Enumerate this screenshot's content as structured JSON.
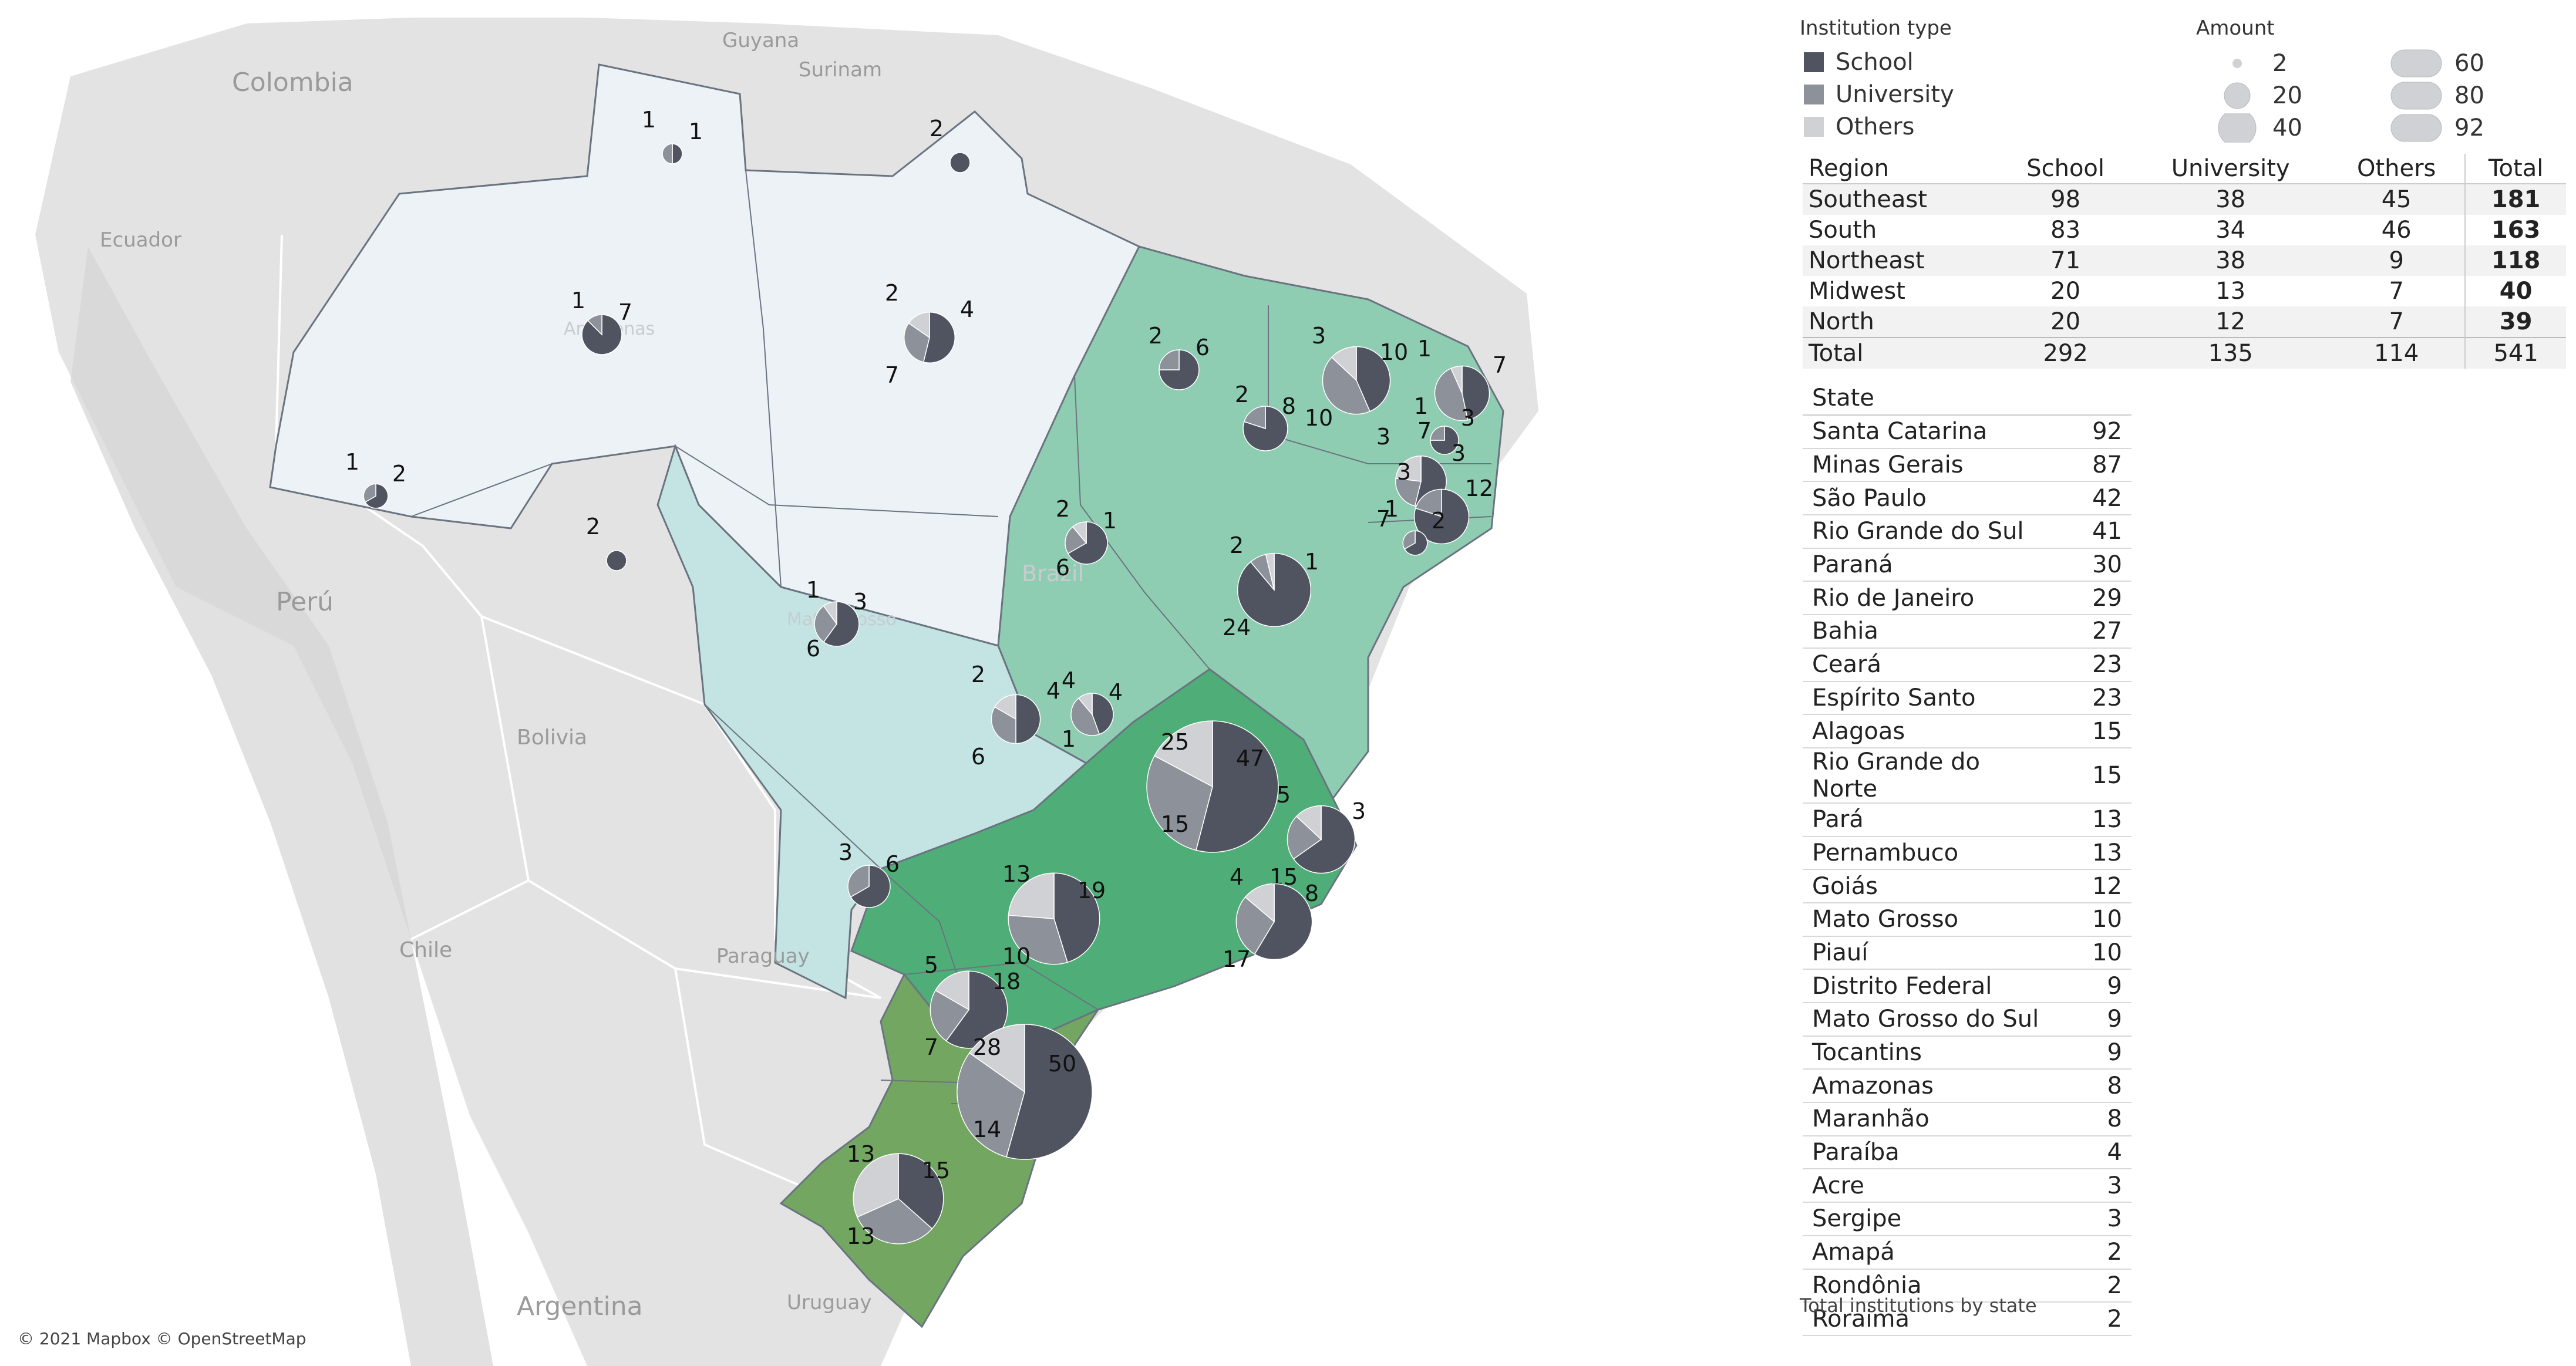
{
  "map": {
    "attribution": "© 2021 Mapbox © OpenStreetMap",
    "country_labels": [
      "Guyana",
      "Surinam",
      "Colombia",
      "Ecuador",
      "Perú",
      "Bolivia",
      "Paraguay",
      "Chile",
      "Argentina",
      "Uruguay",
      "Brazil"
    ],
    "state_labels": [
      "Amazonas",
      "Mato Grosso"
    ],
    "colors": {
      "north": "#edf2f7",
      "midwest": "#c3e4e3",
      "northeast": "#8fcdb2",
      "southeast": "#4fae77",
      "south": "#72a661",
      "school": "#4f5460",
      "university": "#8d9199",
      "others": "#cfd1d4"
    },
    "states": [
      {
        "name": "Roraima",
        "values": [
          1,
          1
        ],
        "labels": [
          "1",
          "1"
        ]
      },
      {
        "name": "Amapá",
        "values": [
          2
        ],
        "labels": [
          "2"
        ]
      },
      {
        "name": "Amazonas",
        "values": [
          1,
          7
        ],
        "labels": [
          "1",
          "7"
        ]
      },
      {
        "name": "Pará",
        "values": [
          2,
          4,
          7
        ],
        "labels": [
          "2",
          "4",
          "7"
        ]
      },
      {
        "name": "Acre",
        "values": [
          1,
          2
        ],
        "labels": [
          "1",
          "2"
        ]
      },
      {
        "name": "Rondônia",
        "values": [
          2
        ],
        "labels": [
          "2"
        ]
      },
      {
        "name": "Maranhão",
        "values": [
          2,
          6
        ],
        "labels": [
          "2",
          "6"
        ]
      },
      {
        "name": "Piauí",
        "values": [
          2,
          8
        ],
        "labels": [
          "2",
          "8"
        ]
      },
      {
        "name": "Ceará",
        "values": [
          3,
          10,
          10
        ],
        "labels": [
          "3",
          "10",
          "10"
        ]
      },
      {
        "name": "Rio Grande do Norte",
        "values": [
          1,
          7,
          7
        ],
        "labels": [
          "1",
          "7",
          "7"
        ]
      },
      {
        "name": "Paraíba",
        "values": [
          1,
          3
        ],
        "labels": [
          "1",
          "3"
        ]
      },
      {
        "name": "Pernambuco",
        "values": [
          3,
          3,
          7
        ],
        "labels": [
          "3",
          "3",
          "7"
        ]
      },
      {
        "name": "Alagoas",
        "values": [
          3,
          12
        ],
        "labels": [
          "3",
          "12"
        ]
      },
      {
        "name": "Sergipe",
        "values": [
          1,
          2
        ],
        "labels": [
          "1",
          "2"
        ]
      },
      {
        "name": "Tocantins",
        "values": [
          2,
          1,
          6
        ],
        "labels": [
          "2",
          "1",
          "6"
        ]
      },
      {
        "name": "Bahia",
        "values": [
          2,
          1,
          24
        ],
        "labels": [
          "2",
          "1",
          "24"
        ]
      },
      {
        "name": "Mato Grosso",
        "values": [
          1,
          3,
          6
        ],
        "labels": [
          "1",
          "3",
          "6"
        ]
      },
      {
        "name": "Goiás",
        "values": [
          2,
          4,
          6
        ],
        "labels": [
          "2",
          "4",
          "6"
        ]
      },
      {
        "name": "Distrito Federal",
        "values": [
          4,
          4,
          1
        ],
        "labels": [
          "4",
          "4",
          "1"
        ]
      },
      {
        "name": "Minas Gerais",
        "values": [
          25,
          47,
          15
        ],
        "labels": [
          "25",
          "47",
          "15"
        ]
      },
      {
        "name": "Espírito Santo",
        "values": [
          5,
          3,
          15
        ],
        "labels": [
          "5",
          "3",
          "15"
        ]
      },
      {
        "name": "Mato Grosso do Sul",
        "values": [
          3,
          6
        ],
        "labels": [
          "3",
          "6"
        ]
      },
      {
        "name": "São Paulo",
        "values": [
          13,
          19,
          10
        ],
        "labels": [
          "13",
          "19",
          "10"
        ]
      },
      {
        "name": "Rio de Janeiro",
        "values": [
          4,
          8,
          17
        ],
        "labels": [
          "4",
          "8",
          "17"
        ]
      },
      {
        "name": "Paraná",
        "values": [
          5,
          18,
          7
        ],
        "labels": [
          "5",
          "18",
          "7"
        ]
      },
      {
        "name": "Santa Catarina",
        "values": [
          28,
          50,
          14
        ],
        "labels": [
          "28",
          "50",
          "14"
        ]
      },
      {
        "name": "Rio Grande do Sul",
        "values": [
          13,
          15,
          13
        ],
        "labels": [
          "13",
          "15",
          "13"
        ]
      }
    ]
  },
  "legend": {
    "type_title": "Institution type",
    "types": [
      {
        "label": "School",
        "color": "#4f5460"
      },
      {
        "label": "University",
        "color": "#8d9199"
      },
      {
        "label": "Others",
        "color": "#cfd1d4"
      }
    ],
    "amount_title": "Amount",
    "amounts": [
      "2",
      "20",
      "40",
      "60",
      "80",
      "92"
    ]
  },
  "region_table": {
    "headers": [
      "Region",
      "School",
      "University",
      "Others",
      "Total"
    ],
    "rows": [
      [
        "Southeast",
        "98",
        "38",
        "45",
        "181"
      ],
      [
        "South",
        "83",
        "34",
        "46",
        "163"
      ],
      [
        "Northeast",
        "71",
        "38",
        "9",
        "118"
      ],
      [
        "Midwest",
        "20",
        "13",
        "7",
        "40"
      ],
      [
        "North",
        "20",
        "12",
        "7",
        "39"
      ]
    ],
    "total_row": [
      "Total",
      "292",
      "135",
      "114",
      "541"
    ]
  },
  "state_table": {
    "header": "State",
    "rows": [
      [
        "Santa Catarina",
        "92"
      ],
      [
        "Minas Gerais",
        "87"
      ],
      [
        "São Paulo",
        "42"
      ],
      [
        "Rio Grande do Sul",
        "41"
      ],
      [
        "Paraná",
        "30"
      ],
      [
        "Rio de Janeiro",
        "29"
      ],
      [
        "Bahia",
        "27"
      ],
      [
        "Ceará",
        "23"
      ],
      [
        "Espírito Santo",
        "23"
      ],
      [
        "Alagoas",
        "15"
      ],
      [
        "Rio Grande do Norte",
        "15"
      ],
      [
        "Pará",
        "13"
      ],
      [
        "Pernambuco",
        "13"
      ],
      [
        "Goiás",
        "12"
      ],
      [
        "Mato Grosso",
        "10"
      ],
      [
        "Piauí",
        "10"
      ],
      [
        "Distrito Federal",
        "9"
      ],
      [
        "Mato Grosso do Sul",
        "9"
      ],
      [
        "Tocantins",
        "9"
      ],
      [
        "Amazonas",
        "8"
      ],
      [
        "Maranhão",
        "8"
      ],
      [
        "Paraíba",
        "4"
      ],
      [
        "Acre",
        "3"
      ],
      [
        "Sergipe",
        "3"
      ],
      [
        "Amapá",
        "2"
      ],
      [
        "Rondônia",
        "2"
      ],
      [
        "Roraima",
        "2"
      ]
    ],
    "caption": "Total institutions by state"
  }
}
